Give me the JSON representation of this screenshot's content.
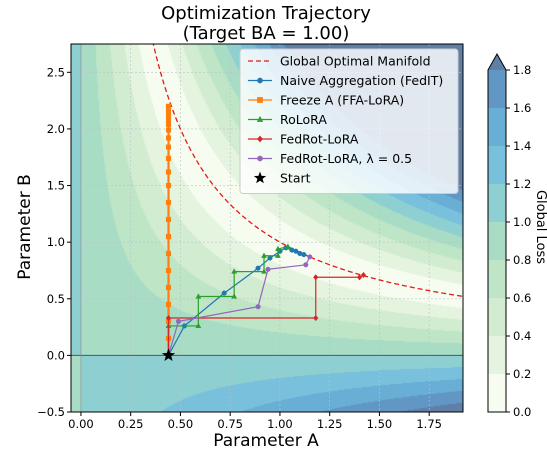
{
  "chart_data": {
    "type": "line",
    "title": "Optimization Trajectory",
    "subtitle": "(Target BA = 1.00)",
    "xlabel": "Parameter A",
    "ylabel": "Parameter B",
    "xlim": [
      -0.05,
      1.92
    ],
    "ylim": [
      -0.5,
      2.75
    ],
    "x_ticks": [
      "0.00",
      "0.25",
      "0.50",
      "0.75",
      "1.00",
      "1.25",
      "1.50",
      "1.75"
    ],
    "x_tick_values": [
      0,
      0.25,
      0.5,
      0.75,
      1.0,
      1.25,
      1.5,
      1.75
    ],
    "y_ticks": [
      "−0.5",
      "0.0",
      "0.5",
      "1.0",
      "1.5",
      "2.0",
      "2.5"
    ],
    "y_tick_values": [
      -0.5,
      0,
      0.5,
      1.0,
      1.5,
      2.0,
      2.5
    ],
    "grid": true,
    "legend_position": "top-right",
    "target_product": 1.0,
    "manifold": {
      "name": "Global Optimal Manifold",
      "color": "#e31a1c"
    },
    "colorbar": {
      "label": "Global Loss",
      "min": 0.0,
      "max": 1.8,
      "ticks": [
        "0.0",
        "0.2",
        "0.4",
        "0.6",
        "0.8",
        "1.0",
        "1.2",
        "1.4",
        "1.6",
        "1.8"
      ],
      "tick_values": [
        0,
        0.2,
        0.4,
        0.6,
        0.8,
        1.0,
        1.2,
        1.4,
        1.6,
        1.8
      ],
      "extend": "max",
      "colors": [
        "#f7fcf0",
        "#e4f4df",
        "#d1ecd0",
        "#bde5c6",
        "#a8dcc5",
        "#8ecfd2",
        "#78c0db",
        "#69aed5",
        "#6296c4"
      ],
      "extend_color": "#5f7fa7"
    },
    "series": [
      {
        "name": "Naive Aggregation (FedIT)",
        "color": "#1f77b4",
        "marker": "circle",
        "x": [
          0.44,
          0.52,
          0.72,
          0.89,
          0.95,
          1.0,
          1.03,
          1.06,
          1.08,
          1.1,
          1.12
        ],
        "y": [
          0.0,
          0.26,
          0.55,
          0.77,
          0.86,
          0.92,
          0.95,
          0.93,
          0.92,
          0.9,
          0.89
        ]
      },
      {
        "name": "Freeze A (FFA-LoRA)",
        "color": "#ff7f0e",
        "marker": "square",
        "x": [
          0.44,
          0.44,
          0.44,
          0.44,
          0.44,
          0.44,
          0.44,
          0.44,
          0.44,
          0.44,
          0.44,
          0.44,
          0.44,
          0.44,
          0.44,
          0.44,
          0.44,
          0.44,
          0.44,
          0.44,
          0.44,
          0.44
        ],
        "y": [
          0.0,
          0.15,
          0.3,
          0.45,
          0.6,
          0.75,
          0.9,
          1.05,
          1.2,
          1.35,
          1.5,
          1.62,
          1.74,
          1.84,
          1.92,
          1.99,
          2.04,
          2.08,
          2.12,
          2.15,
          2.18,
          2.2
        ]
      },
      {
        "name": "RoLoRA",
        "color": "#2ca02c",
        "marker": "triangle",
        "x": [
          0.44,
          0.44,
          0.59,
          0.59,
          0.77,
          0.77,
          0.92,
          0.92,
          0.99,
          0.99,
          1.04
        ],
        "y": [
          0.0,
          0.26,
          0.26,
          0.52,
          0.52,
          0.74,
          0.74,
          0.88,
          0.88,
          0.94,
          0.96
        ]
      },
      {
        "name": "FedRot-LoRA",
        "color": "#d62728",
        "marker": "diamond",
        "x": [
          0.44,
          0.44,
          1.18,
          1.18,
          1.4,
          1.42
        ],
        "y": [
          0.0,
          0.33,
          0.33,
          0.69,
          0.69,
          0.71
        ]
      },
      {
        "name": "FedRot-LoRA, λ = 0.5",
        "color": "#9467bd",
        "marker": "circle",
        "x": [
          0.44,
          0.49,
          0.89,
          0.94,
          1.13,
          1.15
        ],
        "y": [
          0.0,
          0.3,
          0.43,
          0.76,
          0.8,
          0.87
        ]
      }
    ],
    "start": {
      "name": "Start",
      "x": 0.44,
      "y": 0.0
    }
  }
}
